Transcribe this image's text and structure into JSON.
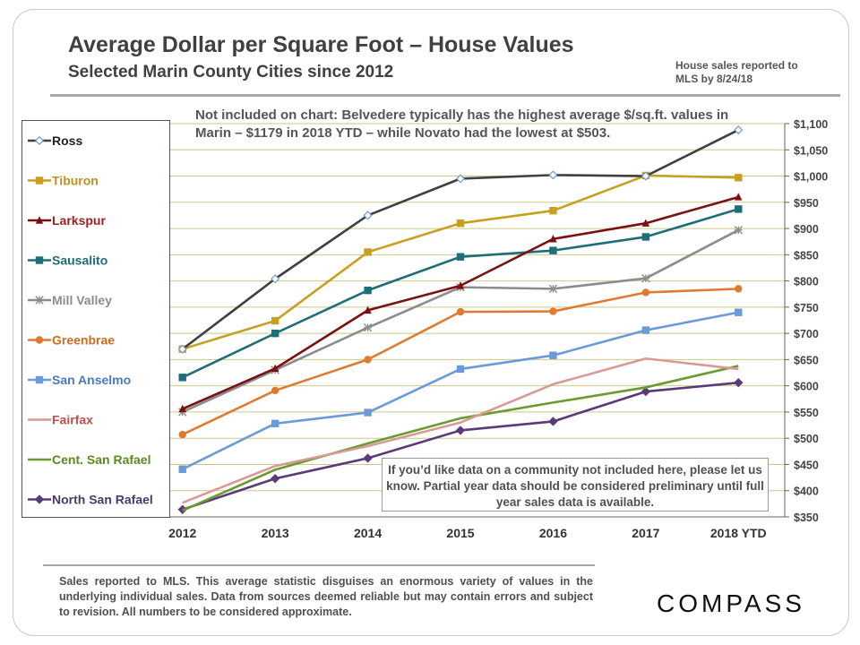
{
  "title": "Average Dollar per Square Foot – House Values",
  "subtitle": "Selected Marin County Cities since 2012",
  "top_note": "House sales reported to MLS by 8/24/18",
  "plot_note": "Not included on chart: Belvedere typically has the highest average $/sq.ft. values in Marin – $1179 in 2018 YTD – while Novato had the lowest at $503.",
  "info_box": "If you’d like data on a community  not included here, please let us know. Partial year data should be considered preliminary until full year sales data is available.",
  "footer": "Sales reported to MLS. This average statistic disguises an enormous variety of values in the underlying individual sales. Data from sources deemed reliable but may contain errors and subject to revision. All numbers to be considered approximate.",
  "brand": "COMPASS",
  "chart_data": {
    "type": "line",
    "title": "Average Dollar per Square Foot – House Values",
    "x": [
      "2012",
      "2013",
      "2014",
      "2015",
      "2016",
      "2017",
      "2018 YTD"
    ],
    "ylim": [
      350,
      1100
    ],
    "yticks": [
      350,
      400,
      450,
      500,
      550,
      600,
      650,
      700,
      750,
      800,
      850,
      900,
      950,
      1000,
      1050,
      1100
    ],
    "ytick_labels": [
      "$350",
      "$400",
      "$450",
      "$500",
      "$550",
      "$600",
      "$650",
      "$700",
      "$750",
      "$800",
      "$850",
      "$900",
      "$950",
      "$1,000",
      "$1,050",
      "$1,100"
    ],
    "grid": true,
    "legend_position": "left",
    "series": [
      {
        "name": "Ross",
        "values": [
          670,
          804,
          925,
          995,
          1002,
          1000,
          1088
        ],
        "color": "#404040",
        "marker": "diamond-open",
        "label_color": "#222222"
      },
      {
        "name": "Tiburon",
        "values": [
          670,
          724,
          855,
          910,
          934,
          1001,
          997
        ],
        "color": "#c8a020",
        "marker": "square",
        "label_color": "#c09020"
      },
      {
        "name": "Larkspur",
        "values": [
          556,
          633,
          744,
          791,
          880,
          910,
          960
        ],
        "color": "#7a1010",
        "marker": "triangle",
        "label_color": "#a02020"
      },
      {
        "name": "Sausalito",
        "values": [
          616,
          700,
          782,
          846,
          858,
          884,
          937
        ],
        "color": "#1e6e78",
        "marker": "square",
        "label_color": "#1e6e78"
      },
      {
        "name": "Mill Valley",
        "values": [
          550,
          630,
          711,
          788,
          785,
          805,
          897
        ],
        "color": "#8c8c8c",
        "marker": "star",
        "label_color": "#8c8c8c"
      },
      {
        "name": "Greenbrae",
        "values": [
          507,
          591,
          650,
          741,
          742,
          778,
          785
        ],
        "color": "#e07a30",
        "marker": "circle",
        "label_color": "#d06a20"
      },
      {
        "name": "San Anselmo",
        "values": [
          441,
          528,
          549,
          632,
          658,
          706,
          740
        ],
        "color": "#6a9ad8",
        "marker": "square",
        "label_color": "#4a7ac0"
      },
      {
        "name": "Fairfax",
        "values": [
          377,
          447,
          485,
          530,
          603,
          652,
          632
        ],
        "color": "#d89a94",
        "marker": "none",
        "label_color": "#c05050"
      },
      {
        "name": "Cent. San Rafael",
        "values": [
          362,
          440,
          490,
          538,
          568,
          597,
          638
        ],
        "color": "#6a9a30",
        "marker": "none",
        "label_color": "#5a8a20"
      },
      {
        "name": "North San Rafael",
        "values": [
          364,
          423,
          462,
          515,
          532,
          589,
          606
        ],
        "color": "#5a3a7a",
        "marker": "diamond",
        "label_color": "#4a3a6a"
      }
    ]
  }
}
